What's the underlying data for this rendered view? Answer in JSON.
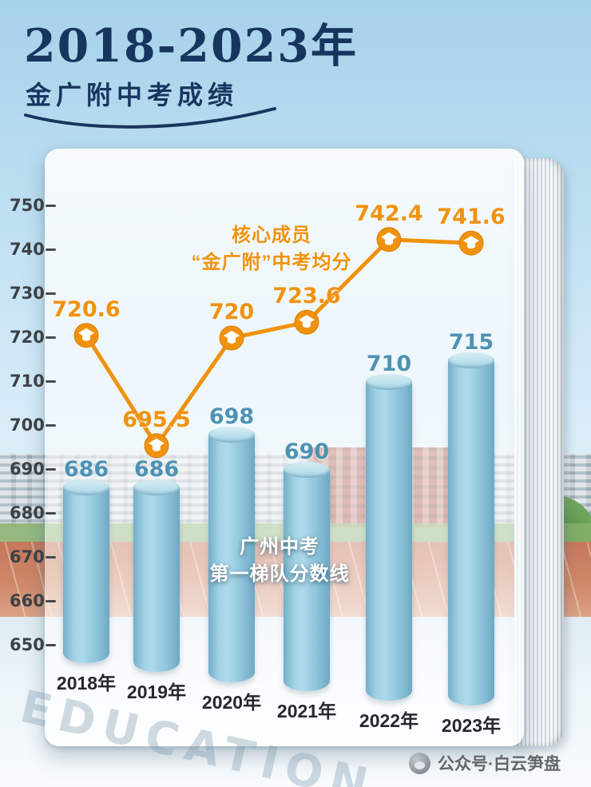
{
  "header": {
    "title": "2018-2023年",
    "subtitle": "金广附中考成绩"
  },
  "chart_data": {
    "type": "bar",
    "title": "2018-2023年 金广附中考成绩",
    "categories": [
      "2018年",
      "2019年",
      "2020年",
      "2021年",
      "2022年",
      "2023年"
    ],
    "series": [
      {
        "name": "广州中考第一梯队分数线",
        "type": "bar",
        "values": [
          686,
          686,
          698,
          690,
          710,
          715
        ]
      },
      {
        "name": "核心成员“金广附”中考均分",
        "type": "line",
        "values": [
          720.6,
          695.5,
          720,
          723.6,
          742.4,
          741.6
        ]
      }
    ],
    "xlabel": "",
    "ylabel": "",
    "ylim": [
      650,
      755
    ],
    "yticks": [
      750,
      740,
      730,
      720,
      710,
      700,
      690,
      680,
      670,
      660,
      650
    ],
    "grid": false,
    "legend_annotations": [
      {
        "target": "line",
        "lines": [
          "核心成员",
          "“金广附”中考均分"
        ]
      },
      {
        "target": "bar",
        "lines": [
          "广州中考",
          "第一梯队分数线"
        ]
      }
    ],
    "colors": {
      "bar_fill": "#8fc6dd",
      "bar_label": "#4e92b2",
      "line": "#f0920e",
      "line_label": "#f0920e",
      "axis_text": "#3c4146",
      "title_navy": "#17365f"
    }
  },
  "footer": {
    "watermark": "EDUCATION",
    "credit": "公众号·白云笋盘"
  }
}
